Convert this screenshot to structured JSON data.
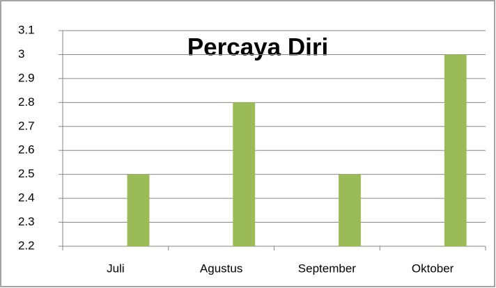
{
  "chart_data": {
    "type": "bar",
    "title": "Percaya Diri",
    "categories": [
      "Juli",
      "Agustus",
      "September",
      "Oktober"
    ],
    "values": [
      2.5,
      2.8,
      2.5,
      3
    ],
    "color": "#9bbb59",
    "ylim": [
      2.2,
      3.1
    ],
    "yticks": [
      2.2,
      2.3,
      2.4,
      2.5,
      2.6,
      2.7,
      2.8,
      2.9,
      3,
      3.1
    ],
    "grid": true
  }
}
